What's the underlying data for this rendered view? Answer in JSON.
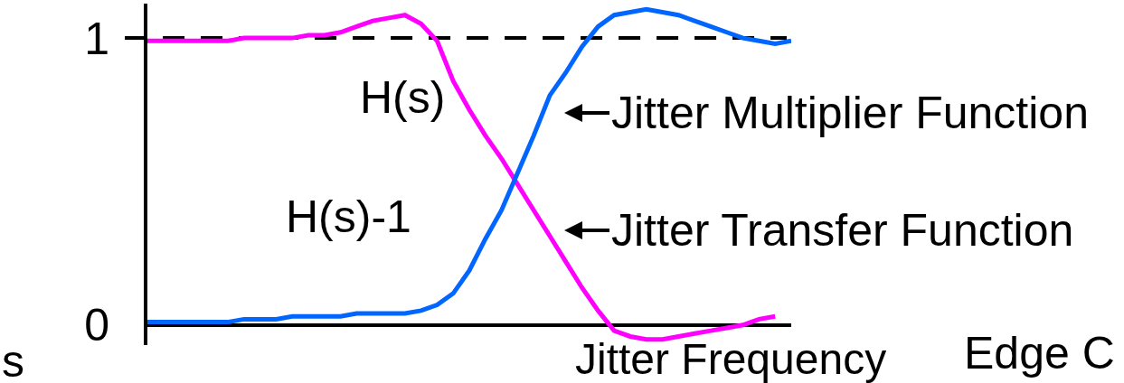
{
  "chart_data": {
    "type": "line",
    "xlabel": "Jitter Frequency",
    "categories": [
      null,
      null,
      null,
      null,
      null,
      null,
      null,
      null,
      null,
      null,
      null,
      null,
      null,
      null,
      null,
      null,
      null,
      null,
      null,
      null,
      null,
      null,
      null,
      null,
      null,
      null,
      null,
      null,
      null,
      null,
      null,
      null,
      null,
      null,
      null,
      null,
      null,
      null,
      null,
      null,
      null
    ],
    "ylim": [
      -0.07,
      1.12
    ],
    "yticks": [
      0,
      1
    ],
    "tick_labels": "y",
    "grid": false,
    "legend": false,
    "line_style": "solid",
    "series": [
      {
        "name": "Jitter Transfer Function",
        "color": "#ff00ff",
        "values": [
          0.99,
          0.99,
          0.99,
          0.99,
          0.99,
          0.99,
          1.0,
          1.0,
          1.0,
          1.0,
          1.01,
          1.01,
          1.02,
          1.04,
          1.06,
          1.07,
          1.08,
          1.05,
          0.99,
          0.85,
          0.75,
          0.66,
          0.58,
          0.49,
          0.4,
          0.31,
          0.22,
          0.13,
          0.05,
          -0.02,
          -0.04,
          -0.05,
          -0.05,
          -0.04,
          -0.03,
          -0.02,
          -0.01,
          0.0,
          0.02,
          0.03,
          null
        ]
      },
      {
        "name": "Jitter Multiplier Function",
        "color": "#0066ff",
        "values": [
          0.01,
          0.01,
          0.01,
          0.01,
          0.01,
          0.01,
          0.02,
          0.02,
          0.02,
          0.03,
          0.03,
          0.03,
          0.03,
          0.04,
          0.04,
          0.04,
          0.04,
          0.05,
          0.07,
          0.11,
          0.19,
          0.3,
          0.4,
          0.53,
          0.66,
          0.8,
          0.88,
          0.97,
          1.04,
          1.08,
          1.09,
          1.1,
          1.09,
          1.08,
          1.06,
          1.04,
          1.02,
          1.0,
          0.99,
          0.98,
          0.99
        ]
      }
    ],
    "ref_lines": [
      {
        "axis": "y",
        "value": 1,
        "color": "#000000",
        "line_style": "dashed"
      }
    ],
    "annotations": [
      "H(s)",
      "H(s)-1",
      "s",
      "Edge C"
    ]
  }
}
